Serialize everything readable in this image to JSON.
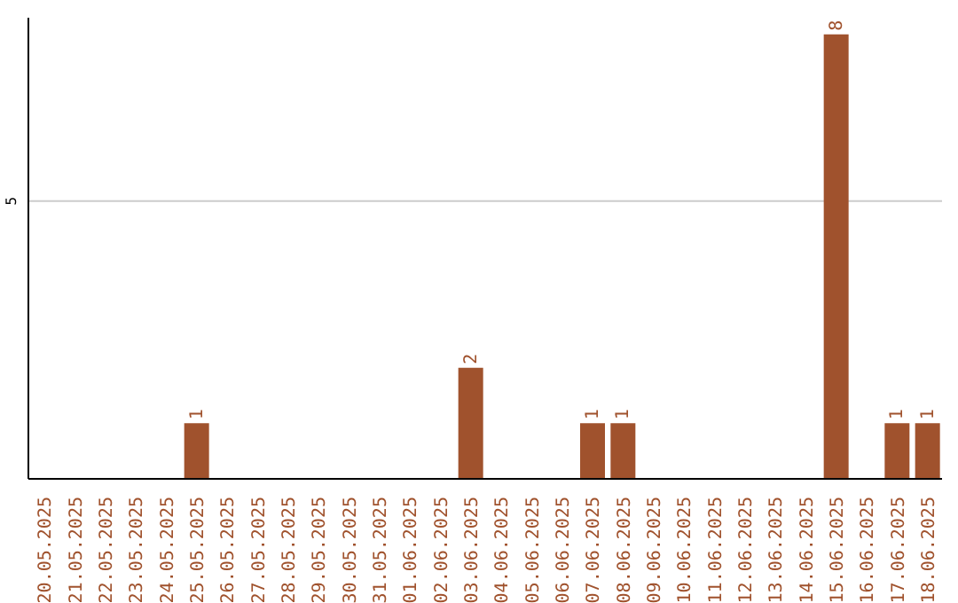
{
  "chart_data": {
    "type": "bar",
    "categories": [
      "20.05.2025",
      "21.05.2025",
      "22.05.2025",
      "23.05.2025",
      "24.05.2025",
      "25.05.2025",
      "26.05.2025",
      "27.05.2025",
      "28.05.2025",
      "29.05.2025",
      "30.05.2025",
      "31.05.2025",
      "01.06.2025",
      "02.06.2025",
      "03.06.2025",
      "04.06.2025",
      "05.06.2025",
      "06.06.2025",
      "07.06.2025",
      "08.06.2025",
      "09.06.2025",
      "10.06.2025",
      "11.06.2025",
      "12.06.2025",
      "13.06.2025",
      "14.06.2025",
      "15.06.2025",
      "16.06.2025",
      "17.06.2025",
      "18.06.2025"
    ],
    "values": [
      0,
      0,
      0,
      0,
      0,
      1,
      0,
      0,
      0,
      0,
      0,
      0,
      0,
      0,
      2,
      0,
      0,
      0,
      1,
      1,
      0,
      0,
      0,
      0,
      0,
      0,
      8,
      0,
      1,
      1
    ],
    "value_labels": [
      null,
      null,
      null,
      null,
      null,
      "1",
      null,
      null,
      null,
      null,
      null,
      null,
      null,
      null,
      "2",
      null,
      null,
      null,
      "1",
      "1",
      null,
      null,
      null,
      null,
      null,
      null,
      "8",
      null,
      "1",
      "1"
    ],
    "color": "#a0522d",
    "ylim": [
      0,
      8.3
    ],
    "yticks": [
      5
    ],
    "grid": "y"
  }
}
